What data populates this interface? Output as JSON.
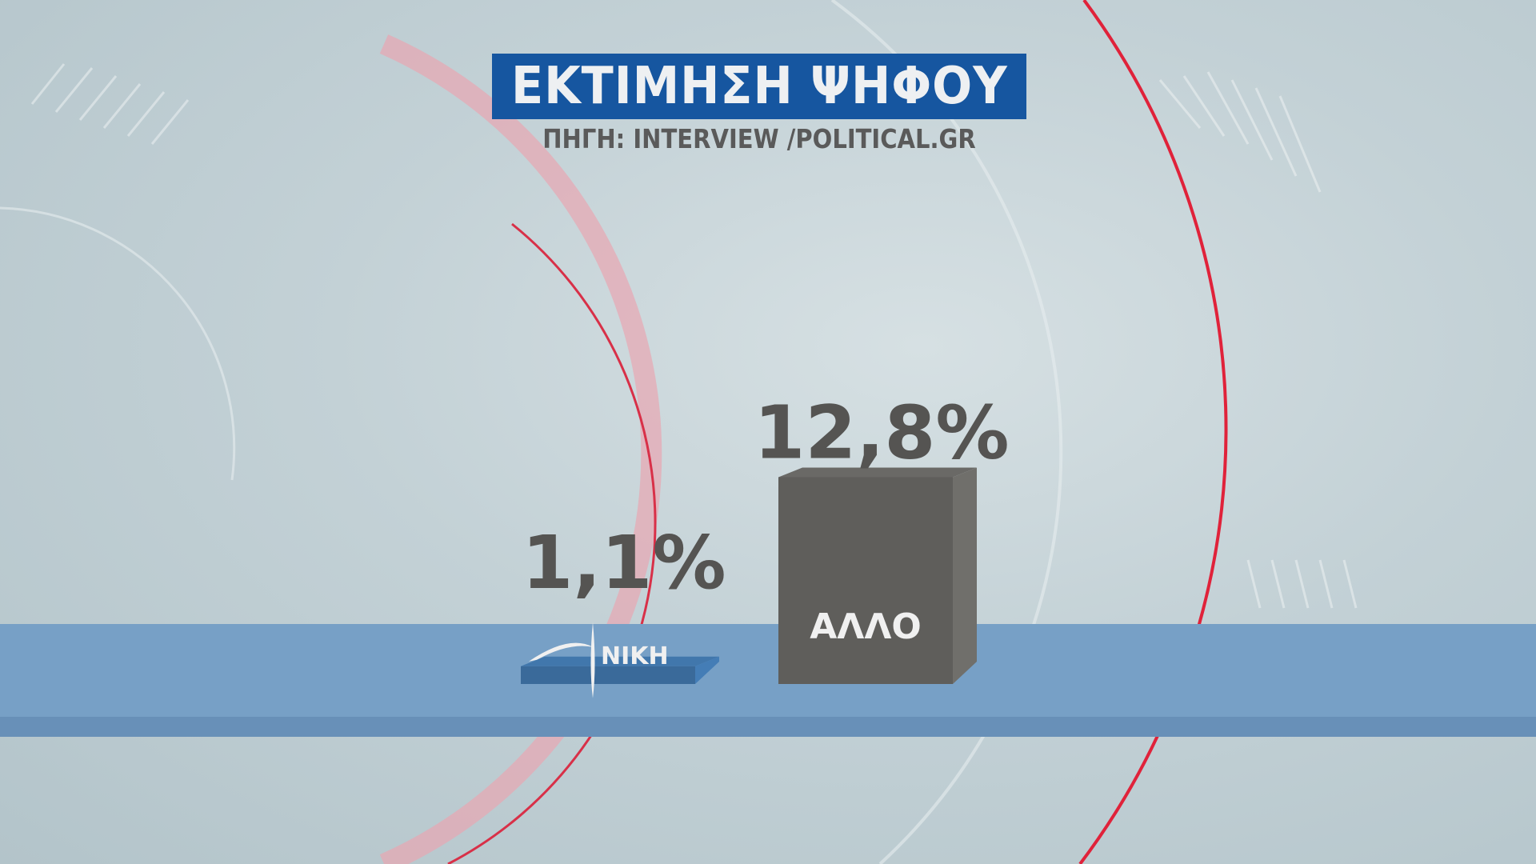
{
  "header": {
    "title": "ΕΚΤΙΜΗΣΗ ΨΗΦΟΥ",
    "source": "ΠΗΓΗ: INTERVIEW /POLITICAL.GR"
  },
  "chart_data": {
    "type": "bar",
    "title": "ΕΚΤΙΜΗΣΗ ΨΗΦΟΥ",
    "subtitle": "ΠΗΓΗ: INTERVIEW /POLITICAL.GR",
    "categories": [
      "ΝΙΚΗ",
      "ΑΛΛΟ"
    ],
    "values": [
      1.1,
      12.8
    ],
    "value_labels": [
      "1,1%",
      "12,8%"
    ],
    "colors": [
      "#3a6a9a",
      "#5f5e5b"
    ],
    "category_logos": [
      "niki-logo",
      null
    ],
    "unit": "%",
    "grid": false
  }
}
